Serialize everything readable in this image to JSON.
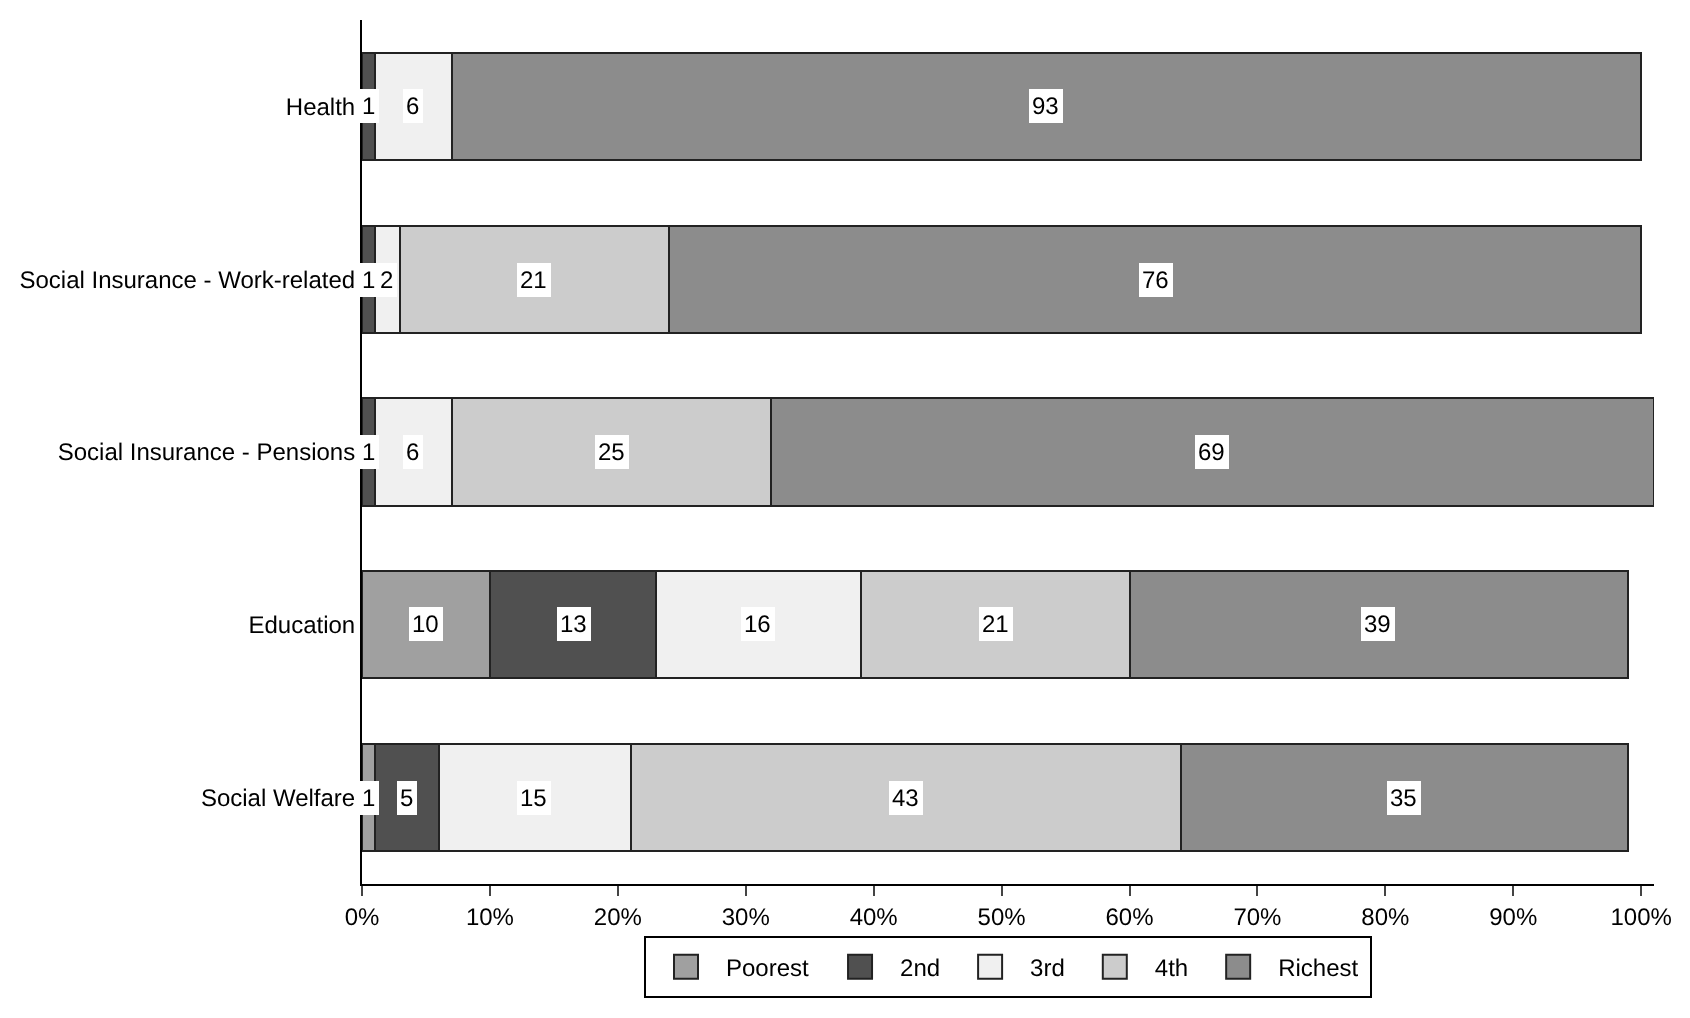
{
  "chart_data": {
    "type": "bar",
    "orientation": "horizontal",
    "stacked": true,
    "categories": [
      "Health",
      "Social Insurance - Work-related",
      "Social Insurance - Pensions",
      "Education",
      "Social Welfare"
    ],
    "series": [
      {
        "name": "Poorest",
        "color": "#a0a0a0",
        "values": [
          null,
          null,
          null,
          10,
          1
        ],
        "value_labels": [
          null,
          null,
          null,
          "10",
          "1"
        ]
      },
      {
        "name": "2nd",
        "color": "#505050",
        "values": [
          1,
          1,
          1,
          13,
          5
        ],
        "value_labels": [
          "1",
          "1",
          "1",
          "13",
          "5"
        ]
      },
      {
        "name": "3rd",
        "color": "#f0f0f0",
        "values": [
          6,
          2,
          6,
          16,
          15
        ],
        "value_labels": [
          "6",
          "2",
          "6",
          "16",
          "15"
        ]
      },
      {
        "name": "4th",
        "color": "#cccccc",
        "values": [
          null,
          21,
          25,
          21,
          43
        ],
        "value_labels": [
          null,
          "21",
          "25",
          "21",
          "43"
        ]
      },
      {
        "name": "Richest",
        "color": "#8c8c8c",
        "values": [
          93,
          76,
          69,
          39,
          35
        ],
        "value_labels": [
          "93",
          "76",
          "69",
          "39",
          "35"
        ]
      }
    ],
    "xlim": [
      0,
      101
    ],
    "xticks": [
      {
        "value": 0,
        "label": "0%"
      },
      {
        "value": 10,
        "label": "10%"
      },
      {
        "value": 20,
        "label": "20%"
      },
      {
        "value": 30,
        "label": "30%"
      },
      {
        "value": 40,
        "label": "40%"
      },
      {
        "value": 50,
        "label": "50%"
      },
      {
        "value": 60,
        "label": "60%"
      },
      {
        "value": 70,
        "label": "70%"
      },
      {
        "value": 80,
        "label": "80%"
      },
      {
        "value": 90,
        "label": "90%"
      },
      {
        "value": 100,
        "label": "100%"
      }
    ],
    "legend": "bottom"
  }
}
